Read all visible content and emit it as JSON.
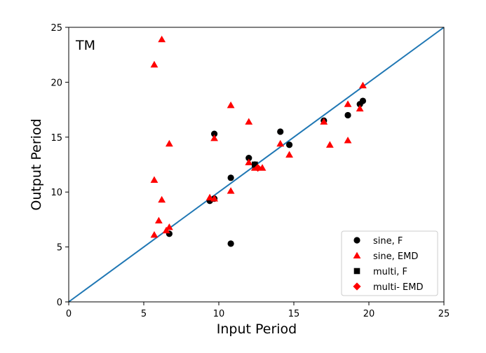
{
  "chart_data": {
    "type": "scatter",
    "title": "",
    "annotation": "TM",
    "xlabel": "Input Period",
    "ylabel": "Output Period",
    "xlim": [
      0,
      25
    ],
    "ylim": [
      0,
      25
    ],
    "xticks": [
      0,
      5,
      10,
      15,
      20,
      25
    ],
    "yticks": [
      0,
      5,
      10,
      15,
      20,
      25
    ],
    "grid": false,
    "legend_position": "lower-right",
    "reference_line": {
      "x": [
        0,
        25
      ],
      "y": [
        0,
        25
      ],
      "color": "#1f77b4"
    },
    "series": [
      {
        "name": "sine, F",
        "marker": "circle",
        "color": "#000000",
        "points": [
          [
            6.7,
            6.2
          ],
          [
            9.4,
            9.2
          ],
          [
            9.7,
            9.4
          ],
          [
            9.7,
            15.3
          ],
          [
            10.8,
            11.3
          ],
          [
            10.8,
            5.3
          ],
          [
            12.0,
            13.1
          ],
          [
            12.4,
            12.5
          ],
          [
            14.1,
            15.5
          ],
          [
            14.7,
            14.3
          ],
          [
            17.0,
            16.5
          ],
          [
            18.6,
            17.0
          ],
          [
            19.4,
            18.0
          ],
          [
            19.6,
            18.3
          ]
        ]
      },
      {
        "name": "sine, EMD",
        "marker": "triangle",
        "color": "#ff0000",
        "points": [
          [
            5.7,
            21.6
          ],
          [
            6.2,
            23.9
          ],
          [
            6.7,
            14.4
          ],
          [
            5.7,
            11.1
          ],
          [
            6.2,
            9.3
          ],
          [
            6.0,
            7.4
          ],
          [
            5.7,
            6.1
          ],
          [
            6.5,
            6.5
          ],
          [
            6.7,
            6.8
          ],
          [
            9.4,
            9.5
          ],
          [
            9.7,
            9.4
          ],
          [
            9.7,
            14.9
          ],
          [
            10.8,
            17.9
          ],
          [
            10.8,
            10.1
          ],
          [
            12.0,
            16.4
          ],
          [
            12.0,
            12.7
          ],
          [
            12.4,
            12.2
          ],
          [
            12.9,
            12.2
          ],
          [
            14.1,
            14.4
          ],
          [
            14.7,
            13.4
          ],
          [
            17.0,
            16.4
          ],
          [
            17.4,
            14.3
          ],
          [
            18.6,
            18.0
          ],
          [
            18.6,
            14.7
          ],
          [
            19.4,
            17.6
          ],
          [
            19.6,
            19.7
          ]
        ]
      },
      {
        "name": "multi, F",
        "marker": "square",
        "color": "#000000",
        "points": [
          [
            12.4,
            12.5
          ]
        ]
      },
      {
        "name": "multi- EMD",
        "marker": "diamond",
        "color": "#ff0000",
        "points": [
          [
            12.6,
            12.2
          ]
        ]
      }
    ]
  }
}
